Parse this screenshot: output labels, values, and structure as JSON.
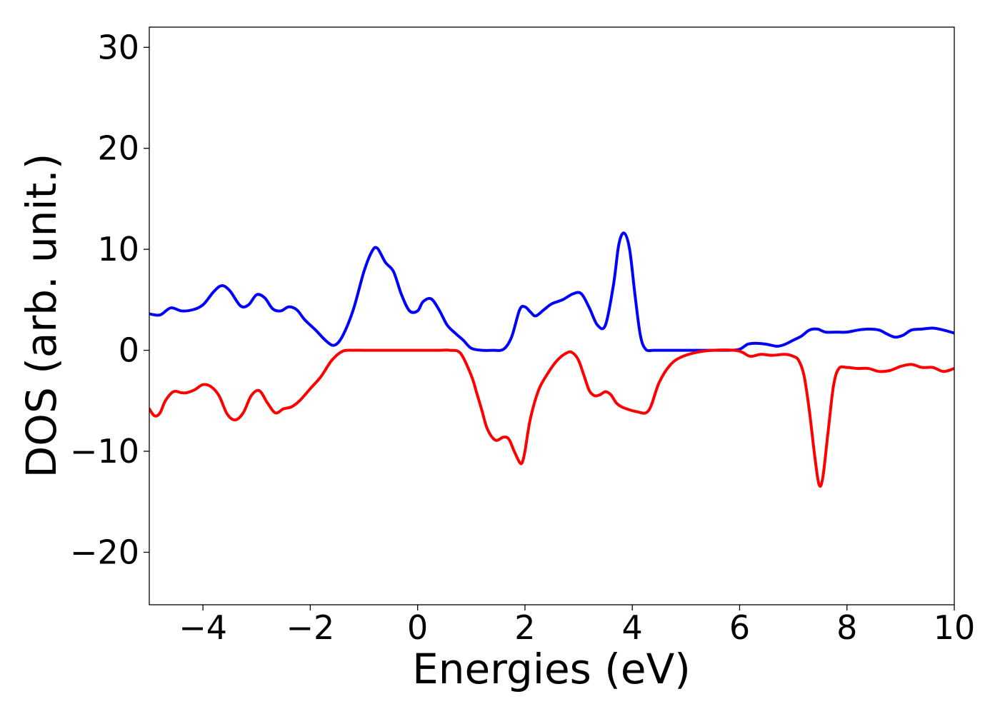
{
  "chart_data": {
    "type": "line",
    "title": "",
    "xlabel": "Energies (eV)",
    "ylabel": "DOS (arb. unit.)",
    "xlim": [
      -5,
      10
    ],
    "ylim": [
      -25.2,
      32
    ],
    "grid": false,
    "legend": "none",
    "xticks": [
      -4,
      -2,
      0,
      2,
      4,
      6,
      8,
      10
    ],
    "xtick_labels": [
      "−4",
      "−2",
      "0",
      "2",
      "4",
      "6",
      "8",
      "10"
    ],
    "yticks": [
      -20,
      -10,
      0,
      10,
      20,
      30
    ],
    "ytick_labels": [
      "−20",
      "−10",
      "0",
      "10",
      "20",
      "30"
    ],
    "series": [
      {
        "color": "#0000ff",
        "x": [
          -5.0,
          -4.8,
          -4.6,
          -4.4,
          -4.2,
          -4.0,
          -3.8,
          -3.65,
          -3.5,
          -3.3,
          -3.15,
          -3.0,
          -2.85,
          -2.7,
          -2.55,
          -2.4,
          -2.25,
          -2.1,
          -1.9,
          -1.7,
          -1.55,
          -1.4,
          -1.2,
          -1.0,
          -0.85,
          -0.75,
          -0.6,
          -0.45,
          -0.3,
          -0.15,
          0.0,
          0.1,
          0.25,
          0.4,
          0.55,
          0.7,
          0.85,
          1.0,
          1.2,
          1.4,
          1.6,
          1.75,
          1.9,
          2.0,
          2.1,
          2.2,
          2.35,
          2.5,
          2.7,
          2.9,
          3.05,
          3.2,
          3.35,
          3.5,
          3.65,
          3.75,
          3.85,
          3.95,
          4.05,
          4.15,
          4.25,
          4.4,
          4.6,
          5.0,
          5.5,
          5.8,
          6.0,
          6.15,
          6.3,
          6.5,
          6.7,
          6.85,
          7.0,
          7.15,
          7.3,
          7.45,
          7.6,
          7.8,
          8.0,
          8.2,
          8.4,
          8.6,
          8.75,
          8.9,
          9.05,
          9.2,
          9.4,
          9.6,
          9.8,
          10.0
        ],
        "y": [
          3.6,
          3.5,
          4.2,
          3.9,
          4.0,
          4.5,
          5.8,
          6.4,
          5.9,
          4.4,
          4.5,
          5.5,
          5.2,
          4.1,
          3.9,
          4.3,
          4.0,
          3.0,
          2.0,
          0.9,
          0.5,
          1.4,
          4.0,
          7.8,
          9.8,
          10.1,
          8.7,
          7.8,
          5.5,
          3.9,
          3.9,
          4.8,
          5.1,
          4.0,
          2.5,
          1.7,
          1.0,
          0.2,
          0.0,
          0.0,
          0.1,
          1.3,
          4.0,
          4.3,
          3.8,
          3.4,
          4.0,
          4.6,
          5.0,
          5.6,
          5.6,
          4.2,
          2.5,
          2.5,
          6.5,
          10.5,
          11.6,
          10.0,
          5.5,
          1.5,
          0.1,
          0.0,
          0.0,
          0.0,
          0.0,
          0.0,
          0.1,
          0.6,
          0.7,
          0.6,
          0.4,
          0.6,
          1.0,
          1.4,
          2.0,
          2.1,
          1.8,
          1.8,
          1.8,
          2.0,
          2.1,
          2.0,
          1.6,
          1.3,
          1.5,
          2.0,
          2.1,
          2.2,
          2.0,
          1.7
        ]
      },
      {
        "color": "#ff0000",
        "x": [
          -5.0,
          -4.9,
          -4.8,
          -4.7,
          -4.55,
          -4.4,
          -4.3,
          -4.15,
          -4.0,
          -3.85,
          -3.7,
          -3.55,
          -3.4,
          -3.25,
          -3.1,
          -2.95,
          -2.8,
          -2.65,
          -2.5,
          -2.35,
          -2.2,
          -2.0,
          -1.8,
          -1.6,
          -1.4,
          -1.2,
          -1.0,
          -0.5,
          0.0,
          0.4,
          0.6,
          0.8,
          1.0,
          1.1,
          1.2,
          1.3,
          1.45,
          1.6,
          1.7,
          1.8,
          1.9,
          1.95,
          2.0,
          2.1,
          2.25,
          2.4,
          2.6,
          2.8,
          2.9,
          3.0,
          3.1,
          3.2,
          3.3,
          3.4,
          3.5,
          3.6,
          3.7,
          3.8,
          3.95,
          4.1,
          4.25,
          4.35,
          4.5,
          4.7,
          4.9,
          5.2,
          5.5,
          5.9,
          6.05,
          6.2,
          6.4,
          6.6,
          6.85,
          7.0,
          7.1,
          7.2,
          7.3,
          7.4,
          7.48,
          7.55,
          7.65,
          7.75,
          7.85,
          8.0,
          8.2,
          8.4,
          8.6,
          8.8,
          9.0,
          9.2,
          9.4,
          9.6,
          9.8,
          10.0
        ],
        "y": [
          -5.8,
          -6.5,
          -6.2,
          -5.0,
          -4.1,
          -4.2,
          -4.2,
          -3.9,
          -3.4,
          -3.6,
          -4.5,
          -6.3,
          -6.9,
          -6.2,
          -4.5,
          -4.0,
          -5.2,
          -6.2,
          -5.8,
          -5.6,
          -5.0,
          -3.8,
          -2.6,
          -1.0,
          -0.1,
          0.0,
          0.0,
          0.0,
          0.0,
          0.0,
          0.0,
          -0.3,
          -2.5,
          -4.2,
          -6.0,
          -7.8,
          -8.9,
          -8.6,
          -8.8,
          -10.0,
          -11.1,
          -11.1,
          -10.0,
          -6.8,
          -4.0,
          -2.5,
          -1.0,
          -0.2,
          -0.3,
          -1.0,
          -2.5,
          -4.0,
          -4.5,
          -4.4,
          -4.1,
          -4.4,
          -5.2,
          -5.6,
          -5.9,
          -6.1,
          -6.2,
          -5.5,
          -3.2,
          -1.5,
          -0.7,
          -0.2,
          0.0,
          0.0,
          -0.2,
          -0.6,
          -0.4,
          -0.5,
          -0.4,
          -0.6,
          -1.0,
          -2.5,
          -6.0,
          -10.5,
          -13.3,
          -12.6,
          -8.0,
          -3.5,
          -1.8,
          -1.7,
          -1.8,
          -1.8,
          -2.1,
          -2.0,
          -1.6,
          -1.4,
          -1.7,
          -1.7,
          -2.1,
          -1.8
        ]
      }
    ]
  }
}
